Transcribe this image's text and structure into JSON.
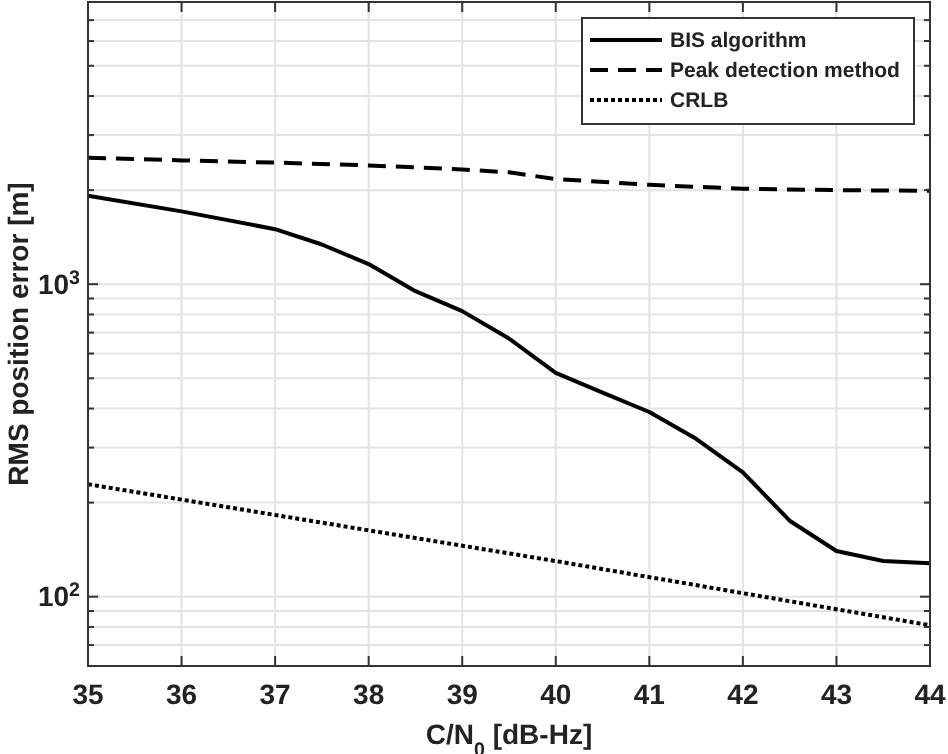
{
  "chart_data": {
    "type": "line",
    "xlabel": "C/N$_{0}$ [dB-Hz]",
    "ylabel": "RMS position error [m]",
    "log": "y",
    "grid": true,
    "legend": "top right",
    "xlim": [
      35,
      44
    ],
    "xticks": [
      35,
      36,
      37,
      38,
      39,
      40,
      41,
      42,
      43,
      44
    ],
    "ylim": [
      60,
      8000
    ],
    "yticks": [
      {
        "value": 60,
        "label": null
      },
      {
        "value": 70,
        "label": null
      },
      {
        "value": 80,
        "label": null
      },
      {
        "value": 90,
        "label": null
      },
      {
        "value": 100,
        "label": "10$^{2}$"
      },
      {
        "value": 200,
        "label": null
      },
      {
        "value": 300,
        "label": null
      },
      {
        "value": 400,
        "label": null
      },
      {
        "value": 500,
        "label": null
      },
      {
        "value": 600,
        "label": null
      },
      {
        "value": 700,
        "label": null
      },
      {
        "value": 800,
        "label": null
      },
      {
        "value": 900,
        "label": null
      },
      {
        "value": 1000,
        "label": "10$^{3}$"
      },
      {
        "value": 2000,
        "label": null
      },
      {
        "value": 3000,
        "label": null
      },
      {
        "value": 4000,
        "label": null
      },
      {
        "value": 5000,
        "label": null
      },
      {
        "value": 6000,
        "label": null
      },
      {
        "value": 7000,
        "label": null
      },
      {
        "value": 8000,
        "label": null
      }
    ],
    "series": [
      {
        "name": "BIS algorithm",
        "color": "#000000",
        "line_style": "solid",
        "x": [
          35,
          36,
          37,
          37.5,
          38,
          38.5,
          39,
          39.5,
          40,
          40.5,
          41,
          41.5,
          42,
          42.5,
          43,
          43.5,
          44
        ],
        "values": [
          1920,
          1710,
          1500,
          1340,
          1160,
          950,
          820,
          670,
          520,
          450,
          390,
          320,
          250,
          175,
          140,
          130,
          128
        ]
      },
      {
        "name": "Peak detection method",
        "color": "#000000",
        "line_style": "dashed",
        "x": [
          35,
          36,
          37,
          38,
          39,
          39.5,
          40,
          41,
          42,
          43,
          44
        ],
        "values": [
          2540,
          2490,
          2450,
          2400,
          2330,
          2280,
          2170,
          2080,
          2020,
          2000,
          1990
        ]
      },
      {
        "name": "CRLB",
        "color": "#000000",
        "line_style": "dotted",
        "x": [
          35,
          40,
          44
        ],
        "values": [
          229,
          130,
          81
        ]
      }
    ]
  }
}
